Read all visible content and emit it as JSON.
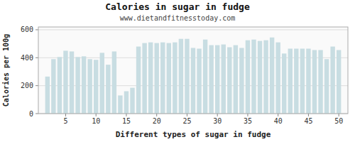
{
  "chart_data": {
    "type": "bar",
    "title": "Calories in sugar in fudge",
    "subtitle": "www.dietandfitnesstoday.com",
    "xlabel": "Different types of sugar in fudge",
    "ylabel": "Calories per 100g",
    "x": [
      2,
      3,
      4,
      5,
      6,
      7,
      8,
      9,
      10,
      11,
      12,
      13,
      14,
      15,
      16,
      17,
      18,
      19,
      20,
      21,
      22,
      23,
      24,
      25,
      26,
      27,
      28,
      29,
      30,
      31,
      32,
      33,
      34,
      35,
      36,
      37,
      38,
      39,
      40,
      41,
      42,
      43,
      44,
      45,
      46,
      47,
      48,
      49,
      50
    ],
    "values": [
      265,
      390,
      405,
      450,
      445,
      405,
      410,
      390,
      385,
      435,
      350,
      445,
      130,
      160,
      185,
      480,
      505,
      510,
      505,
      510,
      505,
      510,
      535,
      535,
      470,
      465,
      530,
      490,
      490,
      495,
      475,
      490,
      470,
      525,
      530,
      520,
      525,
      545,
      510,
      430,
      465,
      465,
      465,
      465,
      455,
      455,
      390,
      480,
      455
    ],
    "color": "#c8dde2",
    "xlim": [
      0.5,
      51.5
    ],
    "ylim": [
      0,
      620
    ],
    "xticks": [
      5,
      10,
      15,
      20,
      25,
      30,
      35,
      40,
      45,
      50
    ],
    "yticks": [
      0,
      200,
      400,
      600
    ],
    "grid": true
  }
}
